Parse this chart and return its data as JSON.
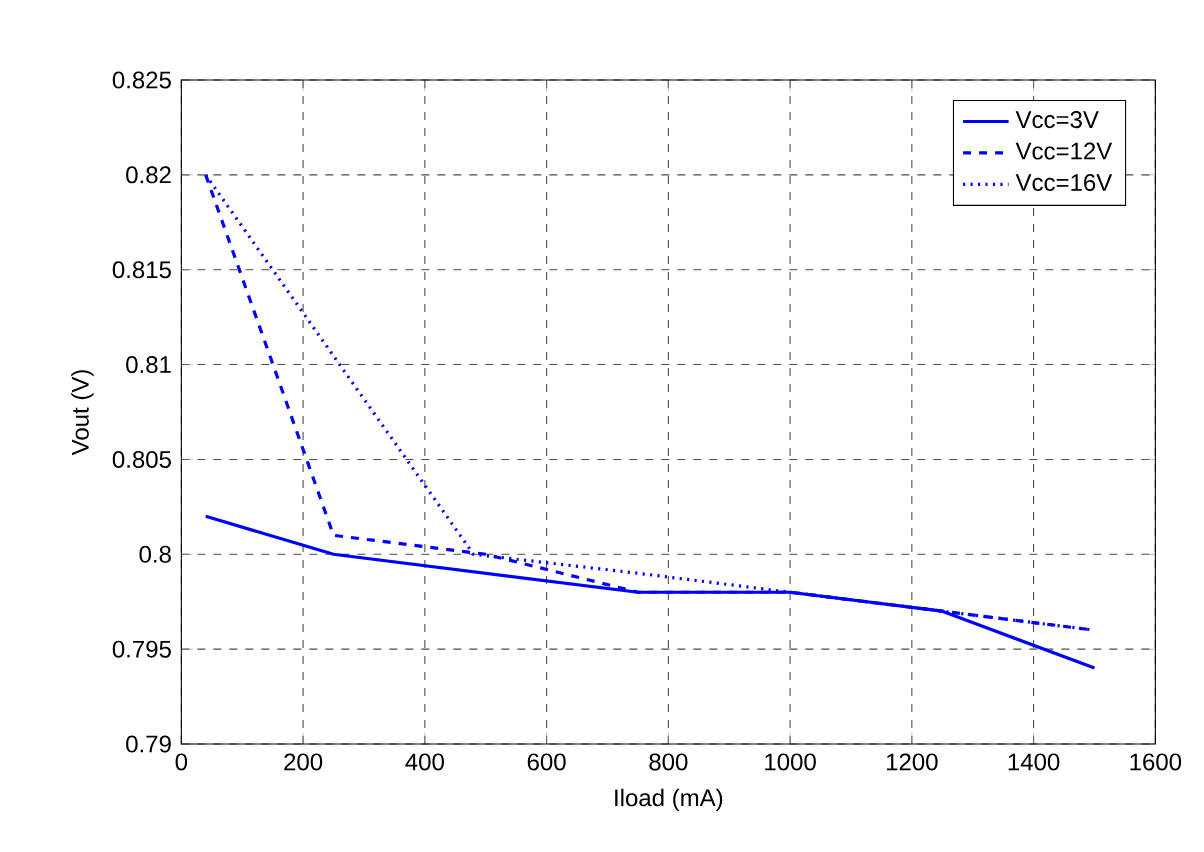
{
  "chart_data": {
    "type": "line",
    "xlabel": "Iload (mA)",
    "ylabel": "Vout (V)",
    "xlim": [
      0,
      1600
    ],
    "xticks": [
      0,
      200,
      400,
      600,
      800,
      1000,
      1200,
      1400,
      1600
    ],
    "ylim": [
      0.79,
      0.825
    ],
    "yticks": [
      0.79,
      0.795,
      0.8,
      0.805,
      0.81,
      0.815,
      0.82,
      0.825
    ],
    "grid": true,
    "legend": "top right",
    "marker": "none",
    "series": [
      {
        "name": "Vcc=3V",
        "color": "#0000ff",
        "line_style": "solid",
        "x": [
          40,
          250,
          750,
          1000,
          1250,
          1500
        ],
        "values": [
          0.802,
          0.8,
          0.798,
          0.798,
          0.797,
          0.794
        ]
      },
      {
        "name": "Vcc=12V",
        "color": "#0000ff",
        "line_style": "dashed",
        "x": [
          40,
          250,
          500,
          750,
          1000,
          1250,
          1500
        ],
        "values": [
          0.82,
          0.801,
          0.8,
          0.798,
          0.798,
          0.797,
          0.796
        ]
      },
      {
        "name": "Vcc=16V",
        "color": "#0000ff",
        "line_style": "dotted",
        "x": [
          40,
          480,
          750,
          1000,
          1250,
          1500
        ],
        "values": [
          0.82,
          0.8,
          0.799,
          0.798,
          0.797,
          0.796
        ]
      }
    ]
  }
}
